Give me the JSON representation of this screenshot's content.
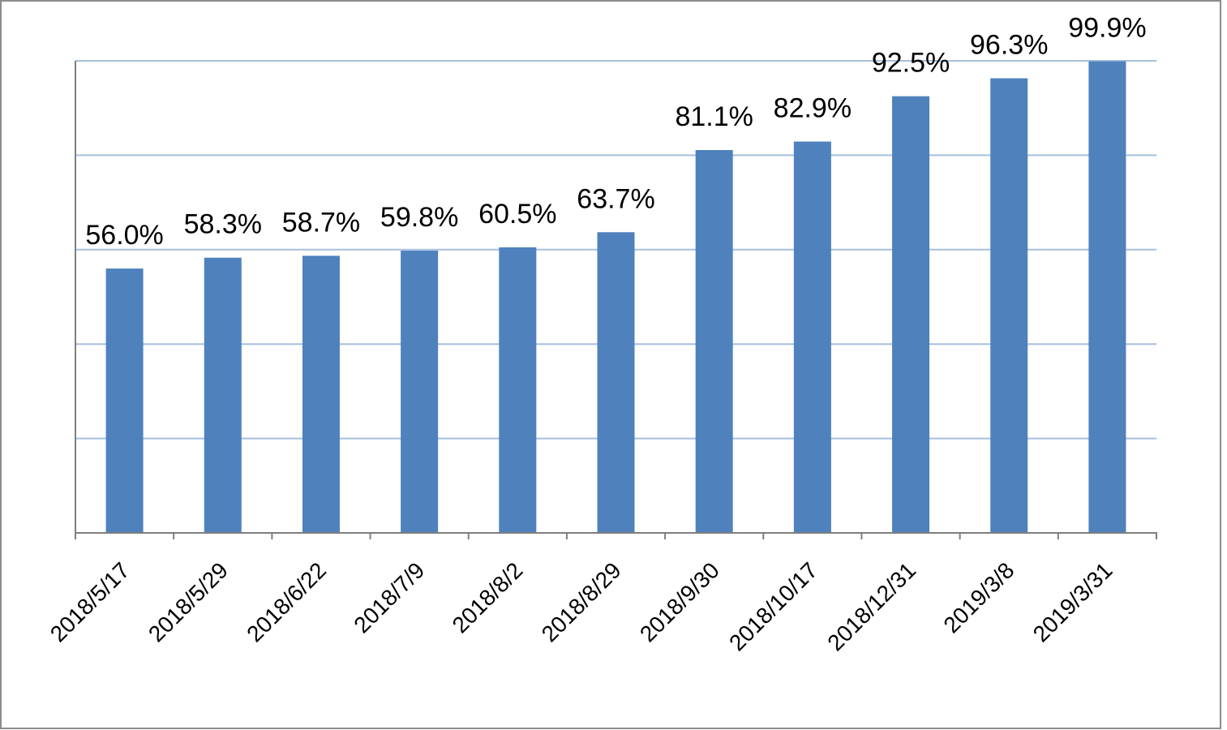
{
  "chart_data": {
    "type": "bar",
    "title": "",
    "xlabel": "",
    "ylabel": "",
    "categories": [
      "2018/5/17",
      "2018/5/29",
      "2018/6/22",
      "2018/7/9",
      "2018/8/2",
      "2018/8/29",
      "2018/9/30",
      "2018/10/17",
      "2018/12/31",
      "2019/3/8",
      "2019/3/31"
    ],
    "values": [
      56.0,
      58.3,
      58.7,
      59.8,
      60.5,
      63.7,
      81.1,
      82.9,
      92.5,
      96.3,
      99.9
    ],
    "data_labels": [
      "56.0%",
      "58.3%",
      "58.7%",
      "59.8%",
      "60.5%",
      "63.7%",
      "81.1%",
      "82.9%",
      "92.5%",
      "96.3%",
      "99.9%"
    ],
    "ylim": [
      0,
      100
    ],
    "y_ticks_shown": false,
    "grid": true,
    "legend": "none",
    "colors": {
      "bar": "#4F81BD",
      "grid": "#A7BFDE",
      "axis": "#7F7F7F",
      "frame": "#8C8C8C"
    }
  }
}
